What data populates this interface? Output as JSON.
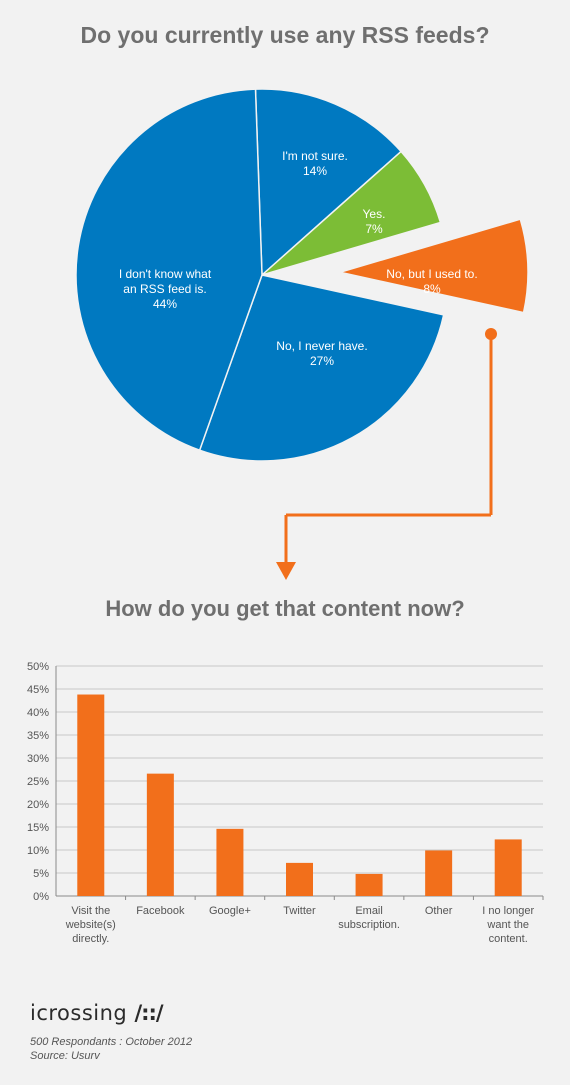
{
  "chart_data": [
    {
      "type": "pie",
      "title": "Do you currently use any RSS feeds?",
      "slices": [
        {
          "label_line1": "I'm not sure.",
          "label_line2": "",
          "pct_label": "14%",
          "value": 14,
          "color": "#0079c1",
          "exploded": false
        },
        {
          "label_line1": "Yes.",
          "label_line2": "",
          "pct_label": "7%",
          "value": 7,
          "color": "#7cbd36",
          "exploded": false
        },
        {
          "label_line1": "No, but I used to.",
          "label_line2": "",
          "pct_label": "8%",
          "value": 8,
          "color": "#f26f1b",
          "exploded": true
        },
        {
          "label_line1": "No, I never have.",
          "label_line2": "",
          "pct_label": "27%",
          "value": 27,
          "color": "#0079c1",
          "exploded": false
        },
        {
          "label_line1": "I don't know what",
          "label_line2": "an RSS feed is.",
          "pct_label": "44%",
          "value": 44,
          "color": "#0079c1",
          "exploded": false
        }
      ]
    },
    {
      "type": "bar",
      "title": "How do you get that content now?",
      "categories": [
        [
          "Visit the",
          "website(s)",
          "directly."
        ],
        [
          "Facebook"
        ],
        [
          "Google+"
        ],
        [
          "Twitter"
        ],
        [
          "Email",
          "subscription."
        ],
        [
          "Other"
        ],
        [
          "I no longer",
          "want the",
          "content."
        ]
      ],
      "values": [
        43.8,
        26.6,
        14.6,
        7.2,
        4.8,
        9.9,
        12.3
      ],
      "ylim": [
        0,
        50
      ],
      "yticks": [
        "0%",
        "5%",
        "10%",
        "15%",
        "20%",
        "25%",
        "30%",
        "35%",
        "40%",
        "45%",
        "50%"
      ],
      "grid": true,
      "bar_color": "#f26f1b"
    }
  ],
  "brand": {
    "name": "icrossing",
    "mark": "/::/"
  },
  "footer": {
    "respondents": "500 Respondants : October 2012",
    "source": "Source: Usurv"
  },
  "colors": {
    "accent": "#f26f1b",
    "blue": "#0079c1",
    "green": "#7cbd36"
  }
}
